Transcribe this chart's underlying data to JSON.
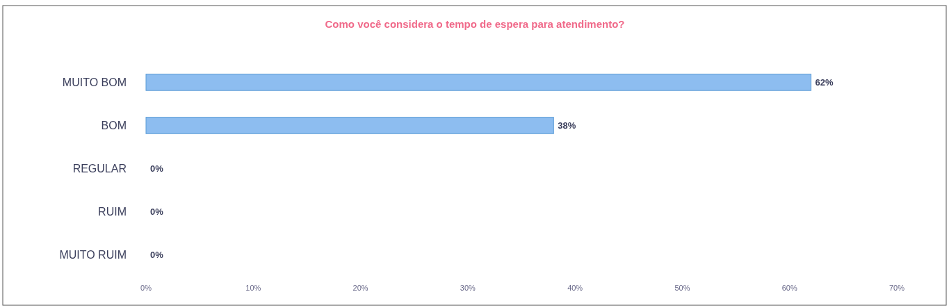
{
  "chart_data": {
    "type": "bar",
    "orientation": "horizontal",
    "title": "Como você considera o tempo de espera para atendimento?",
    "categories": [
      "MUITO BOM",
      "BOM",
      "REGULAR",
      "RUIM",
      "MUITO RUIM"
    ],
    "values": [
      62,
      38,
      0,
      0,
      0
    ],
    "value_labels": [
      "62%",
      "38%",
      "0%",
      "0%",
      "0%"
    ],
    "color": "#8dbdf0",
    "xlim": [
      0,
      70
    ],
    "xticks": [
      {
        "value": 0,
        "label": "0%"
      },
      {
        "value": 10,
        "label": "10%"
      },
      {
        "value": 20,
        "label": "20%"
      },
      {
        "value": 30,
        "label": "30%"
      },
      {
        "value": 40,
        "label": "40%"
      },
      {
        "value": 50,
        "label": "50%"
      },
      {
        "value": 60,
        "label": "60%"
      },
      {
        "value": 70,
        "label": "70%"
      }
    ],
    "grid": false
  }
}
